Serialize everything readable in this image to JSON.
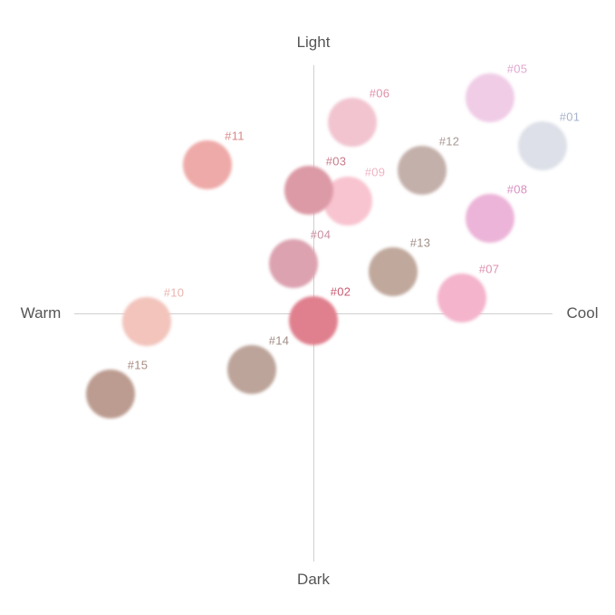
{
  "axes": {
    "top": "Light",
    "bottom": "Dark",
    "left": "Warm",
    "right": "Cool"
  },
  "swatches": [
    {
      "code": "#01",
      "color": "#dde0e8",
      "label_color": "#a8b4cc"
    },
    {
      "code": "#02",
      "color": "#e0808e",
      "label_color": "#c85a70"
    },
    {
      "code": "#03",
      "color": "#dc9aa6",
      "label_color": "#c87a8a"
    },
    {
      "code": "#04",
      "color": "#dca2b0",
      "label_color": "#c890a0"
    },
    {
      "code": "#05",
      "color": "#f0cce6",
      "label_color": "#e0a8d0"
    },
    {
      "code": "#06",
      "color": "#f2c4d0",
      "label_color": "#e090a8"
    },
    {
      "code": "#07",
      "color": "#f4b4cc",
      "label_color": "#e090b0"
    },
    {
      "code": "#08",
      "color": "#ecb4d8",
      "label_color": "#d890c0"
    },
    {
      "code": "#09",
      "color": "#f8c4d0",
      "label_color": "#f0b4c4"
    },
    {
      "code": "#10",
      "color": "#f2c4bc",
      "label_color": "#e8b4b0"
    },
    {
      "code": "#11",
      "color": "#eeaaa8",
      "label_color": "#d88888"
    },
    {
      "code": "#12",
      "color": "#c4b0aa",
      "label_color": "#a89894"
    },
    {
      "code": "#13",
      "color": "#c0a89c",
      "label_color": "#a09088"
    },
    {
      "code": "#14",
      "color": "#bca49a",
      "label_color": "#a08c84"
    },
    {
      "code": "#15",
      "color": "#bc9c90",
      "label_color": "#a88c80"
    }
  ]
}
